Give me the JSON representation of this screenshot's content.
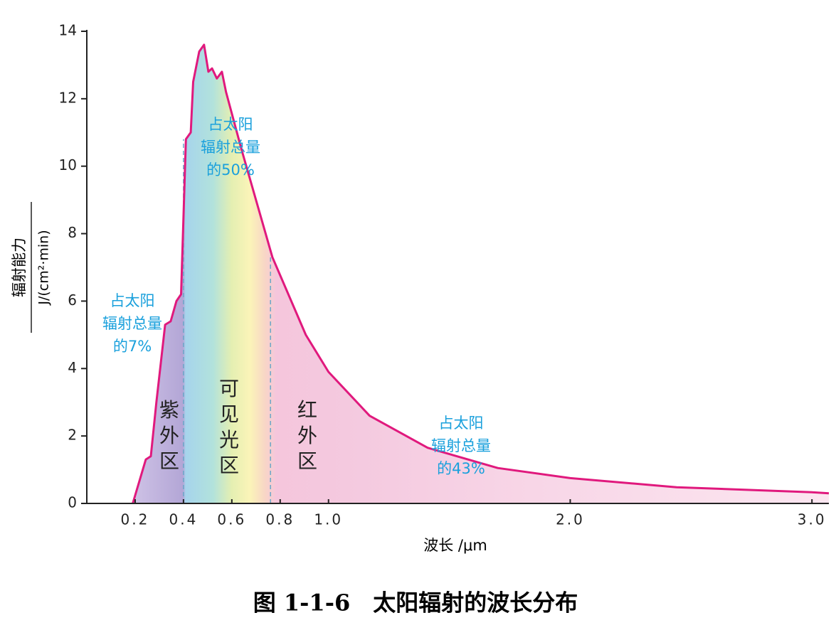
{
  "chart_data": {
    "type": "area-line",
    "title": "图 1-1-6　太阳辐射的波长分布",
    "x_label": "波长 /μm",
    "y_label_numerator": "辐射能力",
    "y_label_denominator": "J/(cm²·min)",
    "x": [
      0.19,
      0.244,
      0.265,
      0.288,
      0.324,
      0.347,
      0.371,
      0.39,
      0.41,
      0.43,
      0.44,
      0.465,
      0.485,
      0.503,
      0.518,
      0.538,
      0.559,
      0.576,
      0.64,
      0.768,
      0.906,
      1.0,
      1.17,
      1.41,
      1.7,
      2.0,
      2.44,
      3.0,
      3.07
    ],
    "values": [
      0,
      1.3,
      1.4,
      3.0,
      5.3,
      5.4,
      6.0,
      6.2,
      10.8,
      11.0,
      12.5,
      13.4,
      13.6,
      12.8,
      12.9,
      12.6,
      12.8,
      12.2,
      10.5,
      7.3,
      5.0,
      3.9,
      2.6,
      1.65,
      1.05,
      0.75,
      0.48,
      0.33,
      0.3
    ],
    "color": "#e0197d",
    "boundaries": [
      0.4,
      0.76
    ],
    "xlim": [
      0,
      3.07
    ],
    "ylim": [
      0,
      14
    ],
    "xticks": [
      0.2,
      0.4,
      0.6,
      0.8,
      {
        "value": 1,
        "label": "1.0"
      },
      {
        "value": 2,
        "label": "2.0"
      },
      {
        "value": 3,
        "label": "3.0"
      }
    ],
    "yticks": [
      0,
      2,
      4,
      6,
      8,
      10,
      12,
      14
    ],
    "regions": [
      {
        "lines": [
          "紫",
          "外",
          "区"
        ]
      },
      {
        "lines": [
          "可",
          "见",
          "光",
          "区"
        ]
      },
      {
        "lines": [
          "红",
          "外",
          "区"
        ]
      }
    ],
    "annotations": [
      {
        "lines": [
          "占太阳",
          "辐射总量",
          "的7%"
        ]
      },
      {
        "lines": [
          "占太阳",
          "辐射总量",
          "的50%"
        ]
      },
      {
        "lines": [
          "占太阳",
          "辐射总量",
          "的43%"
        ]
      }
    ]
  }
}
